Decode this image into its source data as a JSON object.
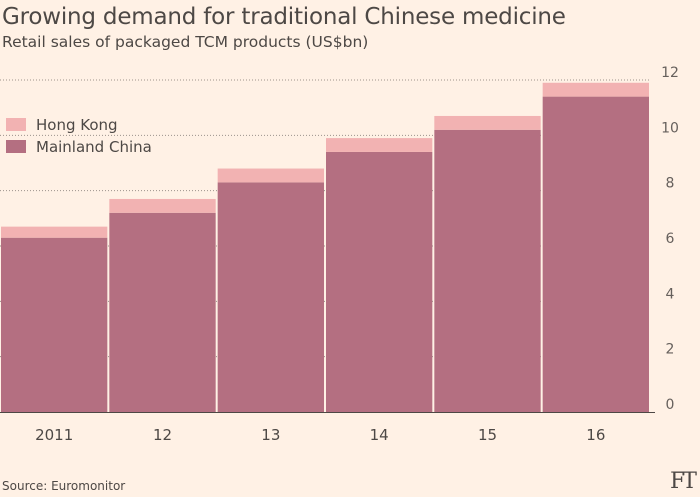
{
  "chart_data": {
    "type": "bar",
    "stacked": true,
    "title": "Growing demand for traditional Chinese medicine",
    "subtitle": "Retail sales of packaged TCM products (US$bn)",
    "categories": [
      "2011",
      "12",
      "13",
      "14",
      "15",
      "16"
    ],
    "series": [
      {
        "name": "Mainland China",
        "color": "#b46f81",
        "values": [
          6.3,
          7.2,
          8.3,
          9.4,
          10.2,
          11.4
        ]
      },
      {
        "name": "Hong Kong",
        "color": "#f2b2b2",
        "values": [
          0.4,
          0.5,
          0.5,
          0.5,
          0.5,
          0.5
        ]
      }
    ],
    "legend_order": [
      "Hong Kong",
      "Mainland China"
    ],
    "ylim": [
      0,
      12
    ],
    "yticks": [
      "0",
      "2",
      "4",
      "6",
      "8",
      "10",
      "12"
    ],
    "y_axis_position": "right",
    "legend_position": "top-left",
    "grid": "dotted-horizontal"
  },
  "source": "Source: Euromonitor",
  "logo": "FT"
}
